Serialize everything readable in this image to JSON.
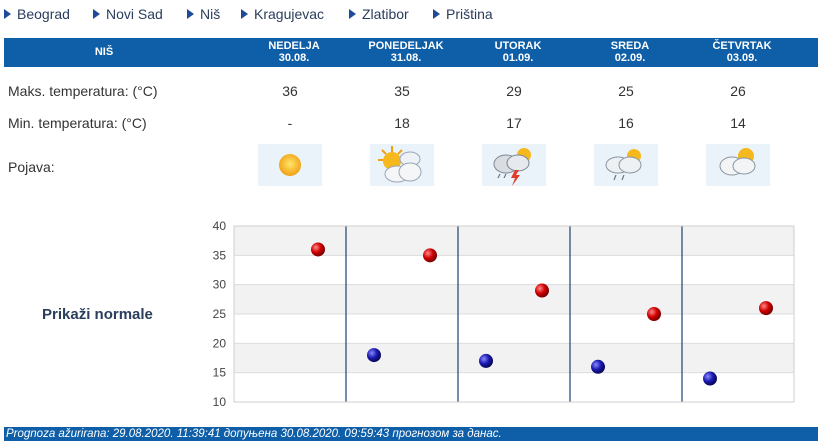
{
  "cities": [
    "Beograd",
    "Novi Sad",
    "Niš",
    "Kragujevac",
    "Zlatibor",
    "Priština"
  ],
  "table": {
    "city_title": "NIŠ",
    "days": [
      {
        "name": "NEDELJA",
        "date": "30.08.",
        "max": "36",
        "min": "-",
        "icon": "sun-icon"
      },
      {
        "name": "PONEDELJAK",
        "date": "31.08.",
        "max": "35",
        "min": "18",
        "icon": "sun-cloud-icon"
      },
      {
        "name": "UTORAK",
        "date": "01.09.",
        "max": "29",
        "min": "17",
        "icon": "thunderstorm-icon"
      },
      {
        "name": "SREDA",
        "date": "02.09.",
        "max": "25",
        "min": "16",
        "icon": "sun-cloud-rain-icon"
      },
      {
        "name": "ČETVRTAK",
        "date": "03.09.",
        "max": "26",
        "min": "14",
        "icon": "sun-cloud-icon"
      }
    ],
    "labels": {
      "max": "Maks. temperatura: (°C)",
      "min": "Min. temperatura: (°C)",
      "phenomenon": "Pojava:"
    }
  },
  "show_normals": "Prikaži normale",
  "chart_data": {
    "type": "scatter",
    "ylim": [
      10,
      40
    ],
    "yticks": [
      10,
      15,
      20,
      25,
      30,
      35,
      40
    ],
    "categories": [
      "NEDELJA 30.08.",
      "PONEDELJAK 31.08.",
      "UTORAK 01.09.",
      "SREDA 02.09.",
      "ČETVRTAK 03.09."
    ],
    "series": [
      {
        "values": [
          36,
          35,
          29,
          25,
          26
        ],
        "color": "#cc0000"
      },
      {
        "values": [
          null,
          18,
          17,
          16,
          14
        ],
        "color": "#1a1aa8"
      }
    ],
    "grid": true
  },
  "footer": "Prognoza ažurirana:  29.08.2020. 11:39:41 допуњена 30.08.2020. 09:59:43 прогнозом за данас.",
  "colors": {
    "band": "#0f5fa8",
    "accent": "#1f4a9a"
  }
}
